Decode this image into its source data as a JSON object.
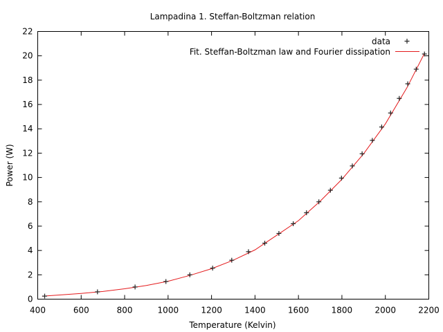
{
  "chart_data": {
    "type": "scatter",
    "title": "Lampadina 1. Steffan-Boltzman relation",
    "xlabel": "Temperature (Kelvin)",
    "ylabel": "Power (W)",
    "xlim": [
      400,
      2200
    ],
    "ylim": [
      0,
      22
    ],
    "xticks": [
      400,
      600,
      800,
      1000,
      1200,
      1400,
      1600,
      1800,
      2000,
      2200
    ],
    "yticks": [
      0,
      2,
      4,
      6,
      8,
      10,
      12,
      14,
      16,
      18,
      20,
      22
    ],
    "grid": false,
    "legend_position": "top-right",
    "colors": {
      "data": "#333333",
      "fit": "#e41a1c"
    },
    "series": [
      {
        "name": "data",
        "style": "points",
        "marker": "plus",
        "x": [
          432,
          675,
          848,
          990,
          1100,
          1205,
          1293,
          1370,
          1445,
          1510,
          1576,
          1637,
          1694,
          1747,
          1798,
          1848,
          1893,
          1940,
          1983,
          2024,
          2064,
          2103,
          2142,
          2180
        ],
        "y": [
          0.25,
          0.6,
          1.0,
          1.45,
          2.0,
          2.55,
          3.2,
          3.9,
          4.6,
          5.4,
          6.2,
          7.1,
          8.0,
          8.95,
          9.95,
          10.95,
          11.95,
          13.05,
          14.15,
          15.3,
          16.5,
          17.7,
          18.9,
          20.15
        ]
      },
      {
        "name": "Fit. Steffan-Boltzman law and Fourier dissipation",
        "style": "line",
        "x": [
          420,
          500,
          600,
          700,
          800,
          900,
          1000,
          1100,
          1200,
          1300,
          1400,
          1500,
          1600,
          1700,
          1800,
          1900,
          2000,
          2100,
          2180
        ],
        "y": [
          0.24,
          0.34,
          0.47,
          0.63,
          0.85,
          1.12,
          1.47,
          1.95,
          2.5,
          3.2,
          4.05,
          5.25,
          6.45,
          8.05,
          9.85,
          11.95,
          14.4,
          17.4,
          20.2
        ]
      }
    ]
  }
}
